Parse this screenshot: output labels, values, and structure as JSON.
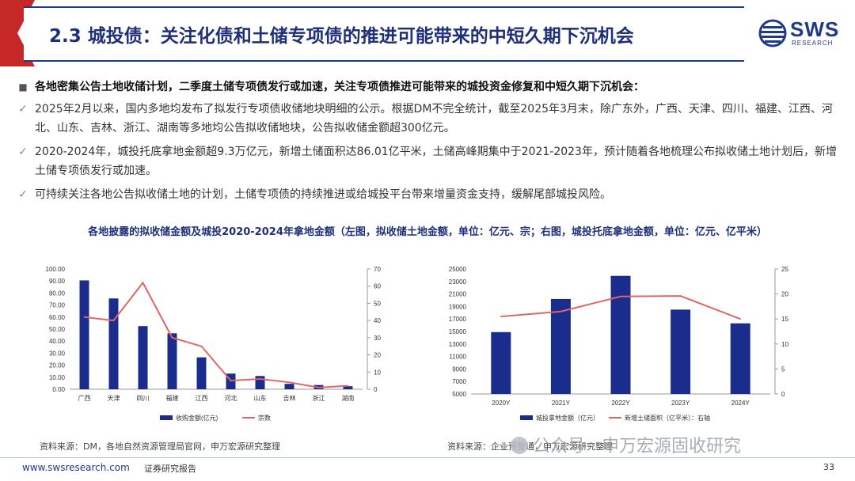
{
  "header": {
    "title": "2.3 城投债：关注化债和土储专项债的推进可能带来的中短久期下沉机会",
    "logo_text": "SWS",
    "logo_sub": "RESEARCH"
  },
  "bullets": {
    "heading": "各地密集公告土地收储计划，二季度土储专项债发行或加速，关注专项债推进可能带来的城投资金修复和中短久期下沉机会：",
    "heading_mark": "■",
    "item_mark": "✓",
    "items": [
      "2025年2月以来，国内多地均发布了拟发行专项债收储地块明细的公示。根据DM不完全统计，截至2025年3月末，除广东外，广西、天津、四川、福建、江西、河北、山东、吉林、浙江、湖南等多地均公告拟收储地块，公告拟收储金额超300亿元。",
      "2020-2024年，城投托底拿地金额超9.3万亿元，新增土储面积达86.01亿平米，土储高峰期集中于2021-2023年，预计随着各地梳理公布拟收储土地计划后，新增土储专项债发行或加速。",
      "可持续关注各地公告拟收储土地的计划，土储专项债的持续推进或给城投平台带来增量资金支持，缓解尾部城投风险。"
    ]
  },
  "chart_caption": "各地披露的拟收储金额及城投2020-2024年拿地金额（左图，拟收储土地金额，单位：亿元、宗；右图，城投托底拿地金额，单位：亿元、亿平米）",
  "chart_data": [
    {
      "type": "bar",
      "categories": [
        "广西",
        "天津",
        "四川",
        "福建",
        "江西",
        "河北",
        "山东",
        "吉林",
        "浙江",
        "湖南"
      ],
      "series": [
        {
          "name": "收购金额(亿元)",
          "kind": "bar",
          "axis": "left",
          "values": [
            90.5,
            75.5,
            52.5,
            46.5,
            26.5,
            13.0,
            11.0,
            4.5,
            3.5,
            2.5
          ]
        },
        {
          "name": "宗数",
          "kind": "line",
          "axis": "right",
          "values": [
            42,
            40,
            62,
            30,
            25,
            5,
            6,
            4,
            1,
            2
          ]
        }
      ],
      "yticks_left": [
        "0.00",
        "10.00",
        "20.00",
        "30.00",
        "40.00",
        "50.00",
        "60.00",
        "70.00",
        "80.00",
        "90.00",
        "100.00"
      ],
      "yticks_right": [
        "0",
        "10",
        "20",
        "30",
        "40",
        "50",
        "60",
        "70"
      ],
      "ylim_left": [
        0,
        100
      ],
      "ylim_right": [
        0,
        70
      ],
      "legend": "bottom",
      "grid": false,
      "colors": {
        "bar": "#1b2d8c",
        "line": "#e06666"
      }
    },
    {
      "type": "bar",
      "categories": [
        "2020Y",
        "2021Y",
        "2022Y",
        "2023Y",
        "2024Y"
      ],
      "series": [
        {
          "name": "城投拿地金额（亿元）",
          "kind": "bar",
          "axis": "left",
          "values": [
            14900,
            20200,
            23900,
            18500,
            16300
          ]
        },
        {
          "name": "新增土储面积（亿平米）：右轴",
          "kind": "line",
          "axis": "right",
          "values": [
            15.5,
            16.5,
            19.5,
            19.6,
            15.0
          ]
        }
      ],
      "yticks_left": [
        "5000",
        "7000",
        "9000",
        "11000",
        "13000",
        "15000",
        "17000",
        "19000",
        "21000",
        "23000",
        "25000"
      ],
      "yticks_right": [
        "0",
        "5",
        "10",
        "15",
        "20",
        "25"
      ],
      "ylim_left": [
        5000,
        25000
      ],
      "ylim_right": [
        0,
        25
      ],
      "legend": "bottom",
      "grid": false,
      "colors": {
        "bar": "#1b2d8c",
        "line": "#e06666"
      }
    }
  ],
  "sources": {
    "left": "资料来源：DM，各地自然资源管理局官网，申万宏源研究整理",
    "right": "资料来源：企业预警通，申万宏源研究整理"
  },
  "watermark": "公众号 · 申万宏源固收研究",
  "footer": {
    "url": "www.swsresearch.com",
    "label": "证券研究报告",
    "page": "33"
  }
}
